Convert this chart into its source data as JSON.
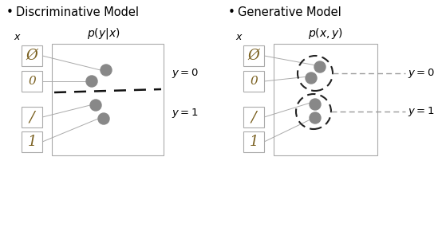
{
  "bg_color": "#ffffff",
  "title_disc": "Discriminative Model",
  "title_gen": "Generative Model",
  "formula_disc": "$p(y|x)$",
  "formula_gen": "$p(x, y)$",
  "x_label": "$x$",
  "dot_color": "#888888",
  "line_color": "#aaaaaa",
  "sep_color": "#222222",
  "panel_edge_color": "#aaaaaa",
  "box_edge_color": "#aaaaaa",
  "title_fontsize": 10.5,
  "formula_fontsize": 10,
  "label_fontsize": 9.5,
  "bullet": "•",
  "digit_chars": [
    "Ø",
    "0",
    "/",
    "1"
  ],
  "digit_colors": [
    "#7a6020",
    "#7a6020",
    "#7a6020",
    "#7a6020"
  ]
}
